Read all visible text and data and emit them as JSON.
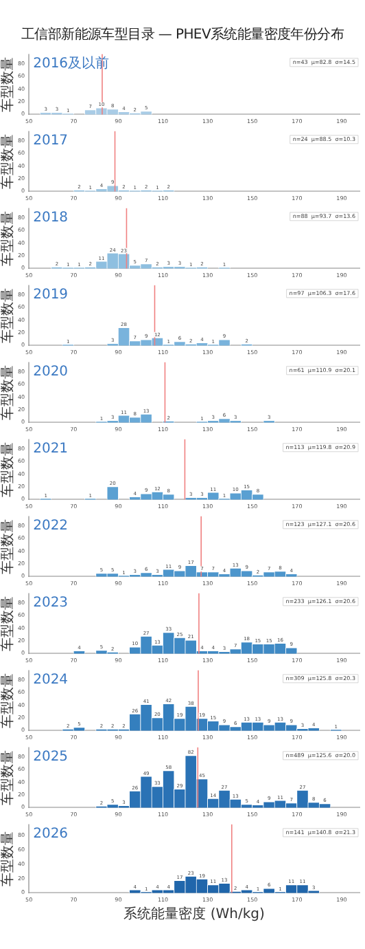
{
  "chart_data": [
    {
      "type": "histogram",
      "title": "工信部新能源车型目录 — PHEV系统能量密度年份分布",
      "subtitle": "2016及以前",
      "ylabel": "车型数量",
      "color": "#a9cce6",
      "bins": [
        50,
        55,
        60,
        65,
        70,
        75,
        80,
        85,
        90,
        95,
        100,
        105
      ],
      "values": [
        0,
        3,
        3,
        1,
        0,
        7,
        10,
        8,
        4,
        2,
        5
      ],
      "value_labels": [
        null,
        "3",
        "3",
        "1",
        null,
        "7",
        "10",
        "8",
        "4",
        "2",
        "5"
      ],
      "xlim": [
        50,
        198
      ],
      "xticks": [
        50,
        70,
        90,
        110,
        130,
        150,
        170,
        190
      ],
      "ylim": [
        0,
        95
      ],
      "yticks": [
        0,
        20,
        40,
        60,
        80
      ],
      "grid": false,
      "ref_lines": [
        {
          "axis": "x",
          "value": 82.8,
          "color": "#f08080"
        }
      ],
      "annotations": [
        "n=43  μ=82.8  σ=14.5"
      ]
    },
    {
      "type": "histogram",
      "subtitle": "2017",
      "ylabel": "车型数量",
      "color": "#9cc6e2",
      "bins": [
        50,
        55,
        60,
        65,
        70,
        75,
        80,
        85,
        90,
        95,
        100,
        105,
        110,
        115
      ],
      "values": [
        0,
        0,
        0,
        0,
        2,
        1,
        4,
        9,
        2,
        1,
        2,
        1,
        2
      ],
      "value_labels": [
        null,
        null,
        null,
        null,
        "2",
        "1",
        "4",
        "9",
        "2",
        "1",
        "2",
        "1",
        "2"
      ],
      "xlim": [
        50,
        198
      ],
      "xticks": [
        50,
        70,
        90,
        110,
        130,
        150,
        170,
        190
      ],
      "ylim": [
        0,
        95
      ],
      "yticks": [
        0,
        20,
        40,
        60,
        80
      ],
      "grid": false,
      "ref_lines": [
        {
          "axis": "x",
          "value": 88.5,
          "color": "#f08080"
        }
      ],
      "annotations": [
        "n=24  μ=88.5  σ=10.3"
      ]
    },
    {
      "type": "histogram",
      "subtitle": "2018",
      "ylabel": "车型数量",
      "color": "#8ebfe0",
      "bins": [
        50,
        55,
        60,
        65,
        70,
        75,
        80,
        85,
        90,
        95,
        100,
        105,
        110,
        115,
        120,
        125,
        130,
        135,
        140
      ],
      "values": [
        0,
        0,
        2,
        1,
        1,
        2,
        11,
        24,
        23,
        5,
        7,
        2,
        3,
        3,
        1,
        2,
        0,
        1
      ],
      "value_labels": [
        null,
        null,
        "2",
        "1",
        "1",
        "2",
        "11",
        "24",
        "23",
        "5",
        "7",
        "2",
        "3",
        "3",
        "1",
        "2",
        null,
        "1"
      ],
      "xlim": [
        50,
        198
      ],
      "xticks": [
        50,
        70,
        90,
        110,
        130,
        150,
        170,
        190
      ],
      "ylim": [
        0,
        95
      ],
      "yticks": [
        0,
        20,
        40,
        60,
        80
      ],
      "grid": false,
      "ref_lines": [
        {
          "axis": "x",
          "value": 93.7,
          "color": "#f08080"
        }
      ],
      "annotations": [
        "n=88  μ=93.7  σ=13.6"
      ]
    },
    {
      "type": "histogram",
      "subtitle": "2019",
      "ylabel": "车型数量",
      "color": "#79b3dc",
      "bins": [
        50,
        55,
        60,
        65,
        70,
        75,
        80,
        85,
        90,
        95,
        100,
        105,
        110,
        115,
        120,
        125,
        130,
        135,
        140,
        145,
        150
      ],
      "values": [
        0,
        0,
        0,
        1,
        0,
        0,
        0,
        3,
        28,
        7,
        9,
        12,
        1,
        6,
        2,
        4,
        1,
        9,
        0,
        2
      ],
      "value_labels": [
        null,
        null,
        null,
        "1",
        null,
        null,
        null,
        "3",
        "28",
        "7",
        "9",
        "12",
        "1",
        "6",
        "2",
        "4",
        "1",
        "9",
        null,
        "2"
      ],
      "xlim": [
        50,
        198
      ],
      "xticks": [
        50,
        70,
        90,
        110,
        130,
        150,
        170,
        190
      ],
      "ylim": [
        0,
        95
      ],
      "yticks": [
        0,
        20,
        40,
        60,
        80
      ],
      "grid": false,
      "ref_lines": [
        {
          "axis": "x",
          "value": 106.3,
          "color": "#f08080"
        }
      ],
      "annotations": [
        "n=97  μ=106.3  σ=17.6"
      ]
    },
    {
      "type": "histogram",
      "subtitle": "2020",
      "ylabel": "车型数量",
      "color": "#6aaad7",
      "bins": [
        50,
        55,
        60,
        65,
        70,
        75,
        80,
        85,
        90,
        95,
        100,
        105,
        110,
        115,
        120,
        125,
        130,
        135,
        140,
        145,
        150,
        155,
        160
      ],
      "values": [
        0,
        0,
        0,
        0,
        0,
        0,
        1,
        3,
        11,
        8,
        13,
        0,
        2,
        0,
        0,
        1,
        3,
        6,
        3,
        0,
        0,
        3
      ],
      "value_labels": [
        null,
        null,
        null,
        null,
        null,
        null,
        "1",
        "3",
        "11",
        "8",
        "13",
        null,
        "2",
        null,
        null,
        "1",
        "3",
        "6",
        "3",
        null,
        null,
        "3"
      ],
      "xlim": [
        50,
        198
      ],
      "xticks": [
        50,
        70,
        90,
        110,
        130,
        150,
        170,
        190
      ],
      "ylim": [
        0,
        95
      ],
      "yticks": [
        0,
        20,
        40,
        60,
        80
      ],
      "grid": false,
      "ref_lines": [
        {
          "axis": "x",
          "value": 110.9,
          "color": "#f08080"
        }
      ],
      "annotations": [
        "n=61  μ=110.9  σ=20.1"
      ]
    },
    {
      "type": "histogram",
      "subtitle": "2021",
      "ylabel": "车型数量",
      "color": "#5aa0d2",
      "bins": [
        50,
        55,
        60,
        65,
        70,
        75,
        80,
        85,
        90,
        95,
        100,
        105,
        110,
        115,
        120,
        125,
        130,
        135,
        140,
        145,
        150,
        155
      ],
      "values": [
        0,
        1,
        0,
        0,
        0,
        1,
        0,
        20,
        0,
        4,
        9,
        12,
        8,
        0,
        3,
        3,
        11,
        1,
        10,
        15,
        8
      ],
      "value_labels": [
        null,
        "1",
        null,
        null,
        null,
        "1",
        null,
        "20",
        null,
        "4",
        "9",
        "12",
        "8",
        null,
        "3",
        "3",
        "11",
        "1",
        "10",
        "15",
        "8"
      ],
      "xlim": [
        50,
        198
      ],
      "xticks": [
        50,
        70,
        90,
        110,
        130,
        150,
        170,
        190
      ],
      "ylim": [
        0,
        95
      ],
      "yticks": [
        0,
        20,
        40,
        60,
        80
      ],
      "grid": false,
      "ref_lines": [
        {
          "axis": "x",
          "value": 119.8,
          "color": "#f08080"
        }
      ],
      "annotations": [
        "n=113  μ=119.8  σ=20.9"
      ]
    },
    {
      "type": "histogram",
      "subtitle": "2022",
      "ylabel": "车型数量",
      "color": "#4d96cc",
      "bins": [
        50,
        55,
        60,
        65,
        70,
        75,
        80,
        85,
        90,
        95,
        100,
        105,
        110,
        115,
        120,
        125,
        130,
        135,
        140,
        145,
        150,
        155,
        160,
        165,
        170
      ],
      "values": [
        0,
        0,
        0,
        0,
        0,
        0,
        5,
        5,
        1,
        3,
        6,
        3,
        11,
        9,
        17,
        7,
        7,
        4,
        13,
        9,
        2,
        7,
        8,
        4
      ],
      "value_labels": [
        null,
        null,
        null,
        null,
        null,
        null,
        "5",
        "5",
        "1",
        "3",
        "6",
        "3",
        "11",
        "9",
        "17",
        "7",
        "7",
        "4",
        "13",
        "9",
        "2",
        "7",
        "8",
        "4"
      ],
      "xlim": [
        50,
        198
      ],
      "xticks": [
        50,
        70,
        90,
        110,
        130,
        150,
        170,
        190
      ],
      "ylim": [
        0,
        95
      ],
      "yticks": [
        0,
        20,
        40,
        60,
        80
      ],
      "grid": false,
      "ref_lines": [
        {
          "axis": "x",
          "value": 127.1,
          "color": "#f08080"
        }
      ],
      "annotations": [
        "n=123  μ=127.1  σ=20.6"
      ]
    },
    {
      "type": "histogram",
      "subtitle": "2023",
      "ylabel": "车型数量",
      "color": "#3f8ac5",
      "bins": [
        50,
        55,
        60,
        65,
        70,
        75,
        80,
        85,
        90,
        95,
        100,
        105,
        110,
        115,
        120,
        125,
        130,
        135,
        140,
        145,
        150,
        155,
        160,
        165,
        170
      ],
      "values": [
        0,
        0,
        0,
        0,
        4,
        0,
        5,
        2,
        0,
        10,
        27,
        13,
        33,
        25,
        21,
        4,
        4,
        3,
        7,
        18,
        15,
        15,
        16,
        9
      ],
      "value_labels": [
        null,
        null,
        null,
        null,
        "4",
        null,
        "5",
        "2",
        null,
        "10",
        "27",
        "13",
        "33",
        "25",
        "21",
        "4",
        "4",
        "3",
        "7",
        "18",
        "15",
        "15",
        "16",
        "9"
      ],
      "xlim": [
        50,
        198
      ],
      "xticks": [
        50,
        70,
        90,
        110,
        130,
        150,
        170,
        190
      ],
      "ylim": [
        0,
        95
      ],
      "yticks": [
        0,
        20,
        40,
        60,
        80
      ],
      "grid": false,
      "ref_lines": [
        {
          "axis": "x",
          "value": 126.1,
          "color": "#f08080"
        }
      ],
      "annotations": [
        "n=233  μ=126.1  σ=20.6"
      ]
    },
    {
      "type": "histogram",
      "subtitle": "2024",
      "ylabel": "车型数量",
      "color": "#347fbe",
      "bins": [
        50,
        55,
        60,
        65,
        70,
        75,
        80,
        85,
        90,
        95,
        100,
        105,
        110,
        115,
        120,
        125,
        130,
        135,
        140,
        145,
        150,
        155,
        160,
        165,
        170,
        175,
        180,
        185,
        190
      ],
      "values": [
        0,
        0,
        0,
        2,
        5,
        0,
        2,
        2,
        2,
        26,
        41,
        20,
        42,
        19,
        38,
        19,
        15,
        9,
        6,
        13,
        13,
        9,
        13,
        9,
        3,
        4,
        0,
        1
      ],
      "value_labels": [
        null,
        null,
        null,
        "2",
        "5",
        null,
        "2",
        "2",
        "2",
        "26",
        "41",
        "20",
        "42",
        "19",
        "38",
        "19",
        "15",
        "9",
        "6",
        "13",
        "13",
        "9",
        "13",
        "9",
        "3",
        "4",
        null,
        "1"
      ],
      "xlim": [
        50,
        198
      ],
      "xticks": [
        50,
        70,
        90,
        110,
        130,
        150,
        170,
        190
      ],
      "ylim": [
        0,
        95
      ],
      "yticks": [
        0,
        20,
        40,
        60,
        80
      ],
      "grid": false,
      "ref_lines": [
        {
          "axis": "x",
          "value": 125.8,
          "color": "#f08080"
        }
      ],
      "annotations": [
        "n=309  μ=125.8  σ=20.3"
      ]
    },
    {
      "type": "histogram",
      "subtitle": "2025",
      "ylabel": "车型数量",
      "color": "#2a72b5",
      "bins": [
        50,
        55,
        60,
        65,
        70,
        75,
        80,
        85,
        90,
        95,
        100,
        105,
        110,
        115,
        120,
        125,
        130,
        135,
        140,
        145,
        150,
        155,
        160,
        165,
        170,
        175,
        180,
        185
      ],
      "values": [
        0,
        0,
        0,
        0,
        0,
        0,
        2,
        5,
        3,
        26,
        49,
        33,
        58,
        29,
        82,
        45,
        14,
        27,
        13,
        5,
        4,
        9,
        11,
        7,
        27,
        8,
        6
      ],
      "value_labels": [
        null,
        null,
        null,
        null,
        null,
        null,
        "2",
        "5",
        "3",
        "26",
        "49",
        "33",
        "58",
        "29",
        "82",
        "45",
        "14",
        "27",
        "13",
        "5",
        "4",
        "9",
        "11",
        "7",
        "27",
        "8",
        "6"
      ],
      "xlim": [
        50,
        198
      ],
      "xticks": [
        50,
        70,
        90,
        110,
        130,
        150,
        170,
        190
      ],
      "ylim": [
        0,
        95
      ],
      "yticks": [
        0,
        20,
        40,
        60,
        80
      ],
      "grid": false,
      "ref_lines": [
        {
          "axis": "x",
          "value": 125.6,
          "color": "#f08080"
        }
      ],
      "annotations": [
        "n=489  μ=125.6  σ=20.0"
      ]
    },
    {
      "type": "histogram",
      "subtitle": "2026",
      "xlabel": "系统能量密度 (Wh/kg)",
      "ylabel": "车型数量",
      "color": "#2066ab",
      "bins": [
        50,
        55,
        60,
        65,
        70,
        75,
        80,
        85,
        90,
        95,
        100,
        105,
        110,
        115,
        120,
        125,
        130,
        135,
        140,
        145,
        150,
        155,
        160,
        165,
        170,
        175,
        180
      ],
      "values": [
        0,
        0,
        0,
        0,
        0,
        0,
        0,
        0,
        0,
        4,
        1,
        4,
        4,
        17,
        23,
        19,
        11,
        13,
        2,
        4,
        1,
        6,
        1,
        11,
        11,
        3
      ],
      "value_labels": [
        null,
        null,
        null,
        null,
        null,
        null,
        null,
        null,
        null,
        "4",
        "1",
        "4",
        "4",
        "17",
        "23",
        "19",
        "11",
        "13",
        "2",
        "4",
        "1",
        "6",
        "1",
        "11",
        "11",
        "3"
      ],
      "xlim": [
        50,
        198
      ],
      "xticks": [
        50,
        70,
        90,
        110,
        130,
        150,
        170,
        190
      ],
      "ylim": [
        0,
        95
      ],
      "yticks": [
        0,
        20,
        40,
        60,
        80
      ],
      "grid": false,
      "ref_lines": [
        {
          "axis": "x",
          "value": 140.8,
          "color": "#f08080"
        }
      ],
      "annotations": [
        "n=141  μ=140.8  σ=21.3"
      ]
    }
  ]
}
